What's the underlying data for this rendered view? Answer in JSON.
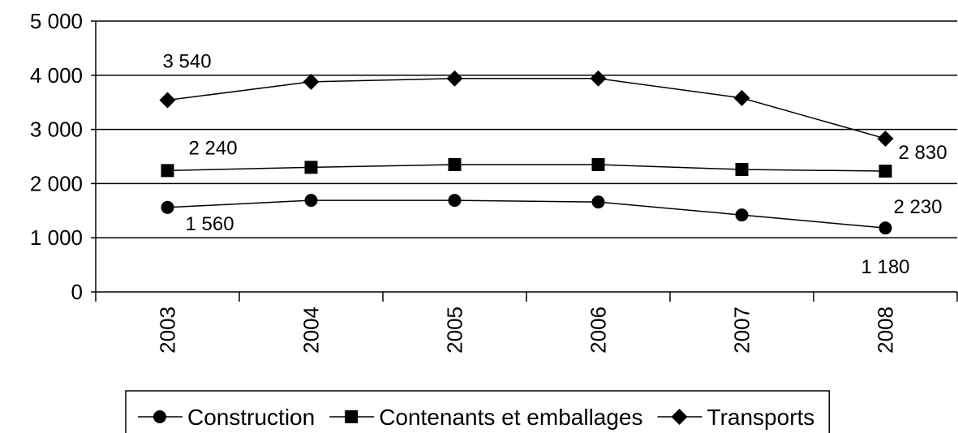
{
  "chart_data": {
    "type": "line",
    "categories": [
      "2003",
      "2004",
      "2005",
      "2006",
      "2007",
      "2008"
    ],
    "series": [
      {
        "name": "Construction",
        "color": "#000000",
        "marker": "circle",
        "values": [
          1560,
          1690,
          1690,
          1660,
          1420,
          1180
        ],
        "value_labels": [
          "1 560",
          null,
          null,
          null,
          null,
          "1 180"
        ]
      },
      {
        "name": "Contenants et emballages",
        "color": "#000000",
        "marker": "square",
        "values": [
          2240,
          2300,
          2350,
          2350,
          2260,
          2230
        ],
        "value_labels": [
          "2 240",
          null,
          null,
          null,
          null,
          "2 230"
        ]
      },
      {
        "name": "Transports",
        "color": "#000000",
        "marker": "diamond",
        "values": [
          3540,
          3880,
          3940,
          3940,
          3580,
          2830
        ],
        "value_labels": [
          "3 540",
          null,
          null,
          null,
          null,
          "2 830"
        ]
      }
    ],
    "ylim": [
      0,
      5000
    ],
    "yticks": [
      {
        "value": 0,
        "label": "0"
      },
      {
        "value": 1000,
        "label": "1 000"
      },
      {
        "value": 2000,
        "label": "2 000"
      },
      {
        "value": 3000,
        "label": "3 000"
      },
      {
        "value": 4000,
        "label": "4 000"
      },
      {
        "value": 5000,
        "label": "5 000"
      }
    ],
    "grid": true,
    "legend": "bottom"
  }
}
